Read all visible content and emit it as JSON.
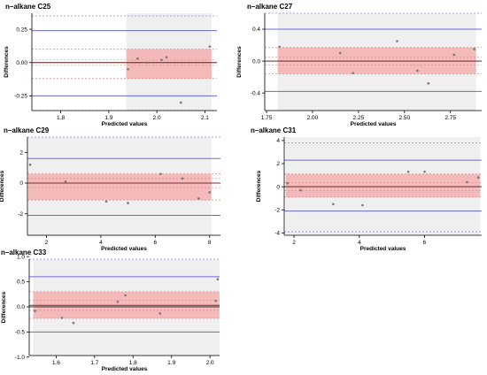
{
  "chart_data": [
    {
      "type": "scatter",
      "title": "n–alkane C25",
      "xlabel": "Predicted values",
      "ylabel": "Differences",
      "xlim": [
        1.74,
        2.125
      ],
      "ylim": [
        -0.36,
        0.37
      ],
      "xticks": [
        "1.8",
        "1.9",
        "2.0",
        "2.1"
      ],
      "yticks": [
        "0.25",
        "0.00",
        "-0.25"
      ],
      "mean": 0.0,
      "mean_ci": [
        -0.02,
        0.02
      ],
      "loa_upper": 0.24,
      "loa_lower": -0.25,
      "loa_upper_ci": [
        0.1,
        0.35
      ],
      "loa_lower_ci": [
        -0.12,
        -0.36
      ],
      "points": [
        {
          "x": 1.94,
          "y": -0.05
        },
        {
          "x": 1.96,
          "y": 0.03
        },
        {
          "x": 1.98,
          "y": 0.0
        },
        {
          "x": 2.01,
          "y": 0.02
        },
        {
          "x": 2.02,
          "y": 0.04
        },
        {
          "x": 2.05,
          "y": -0.3
        },
        {
          "x": 2.11,
          "y": 0.12
        }
      ],
      "grid": false
    },
    {
      "type": "scatter",
      "title": "n–alkane C27",
      "xlabel": "Predicted values",
      "ylabel": "Differences",
      "xlim": [
        1.74,
        2.92
      ],
      "ylim": [
        -0.62,
        0.6
      ],
      "xticks": [
        "1.75",
        "2.00",
        "2.25",
        "2.50",
        "2.75"
      ],
      "yticks": [
        "0.4",
        "0.0",
        "-0.4"
      ],
      "mean": 0.0,
      "mean_ci": [
        -0.05,
        0.05
      ],
      "loa_upper": 0.4,
      "loa_lower": -0.38,
      "loa_upper_ci": [
        0.17,
        0.6
      ],
      "loa_lower_ci": [
        -0.16,
        -0.62
      ],
      "points": [
        {
          "x": 1.82,
          "y": 0.18
        },
        {
          "x": 2.15,
          "y": 0.1
        },
        {
          "x": 2.22,
          "y": -0.15
        },
        {
          "x": 2.46,
          "y": 0.25
        },
        {
          "x": 2.57,
          "y": -0.12
        },
        {
          "x": 2.63,
          "y": -0.28
        },
        {
          "x": 2.77,
          "y": 0.08
        },
        {
          "x": 2.88,
          "y": 0.15
        }
      ],
      "grid": false
    },
    {
      "type": "scatter",
      "title": "n–alkane C29",
      "xlabel": "Predicted values",
      "ylabel": "Differences",
      "xlim": [
        1.3,
        8.4
      ],
      "ylim": [
        -3.4,
        3.0
      ],
      "xticks": [
        "2",
        "4",
        "6",
        "8"
      ],
      "yticks": [
        "2",
        "0",
        "-2"
      ],
      "mean": 0.0,
      "mean_ci": [
        -0.3,
        0.3
      ],
      "loa_upper": 1.6,
      "loa_lower": -2.1,
      "loa_upper_ci": [
        0.6,
        3.0
      ],
      "loa_lower_ci": [
        -1.1,
        -3.4
      ],
      "points": [
        {
          "x": 1.4,
          "y": 1.2
        },
        {
          "x": 2.7,
          "y": 0.1
        },
        {
          "x": 4.2,
          "y": -1.2
        },
        {
          "x": 5.0,
          "y": -1.3
        },
        {
          "x": 6.2,
          "y": 0.6
        },
        {
          "x": 7.0,
          "y": 0.3
        },
        {
          "x": 7.6,
          "y": -1.0
        },
        {
          "x": 8.0,
          "y": -0.6
        }
      ],
      "grid": false
    },
    {
      "type": "scatter",
      "title": "n–alkane C31",
      "xlabel": "Predicted values",
      "ylabel": "Differences",
      "xlim": [
        1.7,
        7.75
      ],
      "ylim": [
        -4.2,
        4.3
      ],
      "xticks": [
        "2",
        "4",
        "6"
      ],
      "yticks": [
        "4",
        "2",
        "0",
        "-2",
        "-4"
      ],
      "mean": 0.0,
      "mean_ci": [
        -0.35,
        0.35
      ],
      "loa_upper": 2.3,
      "loa_lower": -2.1,
      "loa_upper_ci": [
        1.1,
        3.8
      ],
      "loa_lower_ci": [
        -0.9,
        -3.9
      ],
      "points": [
        {
          "x": 1.8,
          "y": 0.3
        },
        {
          "x": 2.2,
          "y": -0.3
        },
        {
          "x": 3.2,
          "y": -1.5
        },
        {
          "x": 4.1,
          "y": -1.6
        },
        {
          "x": 5.5,
          "y": 1.3
        },
        {
          "x": 6.0,
          "y": 1.3
        },
        {
          "x": 7.3,
          "y": 0.4
        },
        {
          "x": 7.65,
          "y": 0.8
        }
      ],
      "grid": false
    },
    {
      "type": "scatter",
      "title": "n–alkane C33",
      "xlabel": "Predicted values",
      "ylabel": "Differences",
      "xlim": [
        1.53,
        2.025
      ],
      "ylim": [
        -0.97,
        0.95
      ],
      "xticks": [
        "1.6",
        "1.7",
        "1.8",
        "1.9",
        "2.0"
      ],
      "yticks": [
        "1.0",
        "0.5",
        "0.0",
        "-0.5",
        "-1.0"
      ],
      "mean": 0.03,
      "mean_ci": [
        -0.07,
        0.13
      ],
      "loa_upper": 0.6,
      "loa_lower": -0.5,
      "loa_upper_ci": [
        0.3,
        0.95
      ],
      "loa_lower_ci": [
        -0.23,
        -0.97
      ],
      "points": [
        {
          "x": 1.545,
          "y": -0.08
        },
        {
          "x": 1.615,
          "y": -0.22
        },
        {
          "x": 1.645,
          "y": -0.32
        },
        {
          "x": 1.76,
          "y": 0.1
        },
        {
          "x": 1.78,
          "y": 0.23
        },
        {
          "x": 1.87,
          "y": -0.13
        },
        {
          "x": 2.015,
          "y": 0.12
        },
        {
          "x": 2.02,
          "y": 0.55
        }
      ],
      "grid": false
    }
  ],
  "colors": {
    "panel_bg": "#efefef",
    "ci_band": "#f6a7a7",
    "ci_dashed": "#d78a8a",
    "loa_line": "#6a6ad8",
    "loa_dashed": "#8c8ce0",
    "mean_line": "#7a2f2f",
    "zero_line": "#222222",
    "point": "#777777",
    "axis": "#000000"
  }
}
